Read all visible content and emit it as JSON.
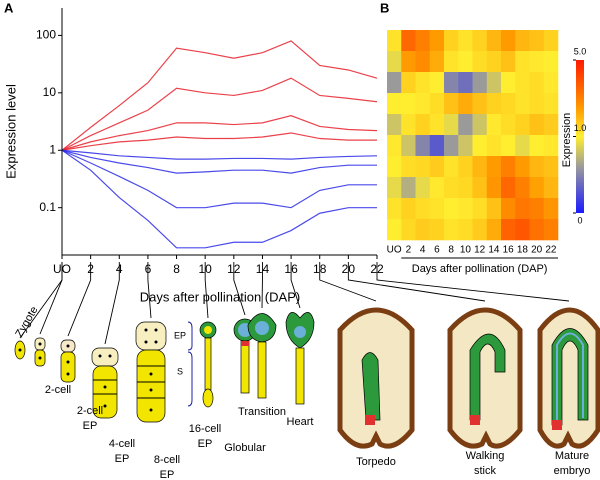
{
  "chart_data": [
    {
      "type": "line",
      "panel": "A",
      "ylabel": "Expression level",
      "xlabel": "Days after pollination (DAP)",
      "categories": [
        "UO",
        "2",
        "4",
        "6",
        "8",
        "10",
        "12",
        "14",
        "16",
        "18",
        "20",
        "22"
      ],
      "log": true,
      "ylim": [
        0.015,
        300
      ],
      "yticks": [
        0.1,
        1,
        10,
        100
      ],
      "series": [
        {
          "color": "#e8202a",
          "values": [
            1,
            2.5,
            6,
            15,
            60,
            50,
            40,
            50,
            80,
            30,
            25,
            18
          ]
        },
        {
          "color": "#e8202a",
          "values": [
            1,
            1.8,
            3,
            5,
            12,
            10,
            9,
            11,
            18,
            9,
            8,
            7
          ]
        },
        {
          "color": "#e8202a",
          "values": [
            1,
            1.4,
            1.8,
            2.2,
            3,
            3,
            2.8,
            3,
            4,
            2.6,
            2.3,
            2.2
          ]
        },
        {
          "color": "#e8202a",
          "values": [
            1,
            1.2,
            1.4,
            1.5,
            1.7,
            1.6,
            1.6,
            1.7,
            2,
            1.6,
            1.5,
            1.5
          ]
        },
        {
          "color": "#2a2ae8",
          "values": [
            1,
            0.9,
            0.8,
            0.75,
            0.7,
            0.7,
            0.72,
            0.72,
            0.7,
            0.75,
            0.78,
            0.8
          ]
        },
        {
          "color": "#2a2ae8",
          "values": [
            1,
            0.75,
            0.6,
            0.5,
            0.4,
            0.42,
            0.45,
            0.45,
            0.4,
            0.5,
            0.55,
            0.55
          ]
        },
        {
          "color": "#2a2ae8",
          "values": [
            1,
            0.6,
            0.35,
            0.2,
            0.1,
            0.1,
            0.12,
            0.12,
            0.1,
            0.2,
            0.25,
            0.25
          ]
        },
        {
          "color": "#2a2ae8",
          "values": [
            1,
            0.45,
            0.15,
            0.06,
            0.02,
            0.02,
            0.025,
            0.025,
            0.04,
            0.08,
            0.1,
            0.1
          ]
        }
      ]
    },
    {
      "type": "heatmap",
      "panel": "B",
      "xlabel": "Days after pollination (DAP)",
      "categories": [
        "UO",
        "2",
        "4",
        "6",
        "8",
        "10",
        "12",
        "14",
        "16",
        "18",
        "20",
        "22"
      ],
      "colorbar_label": "Expression",
      "colorbar_ticks": [
        0,
        {
          "value": 1,
          "label": "1.0"
        },
        {
          "value": 5,
          "label": "5.0"
        }
      ],
      "values": [
        [
          1.2,
          3.5,
          3.0,
          2.5,
          1.5,
          1.2,
          1.5,
          2,
          2.5,
          2,
          1.8,
          1.5
        ],
        [
          0.9,
          2.5,
          2.8,
          2.2,
          1.2,
          1.0,
          1.3,
          1.5,
          1.8,
          1.2,
          1.1,
          1.0
        ],
        [
          0.6,
          1.5,
          1.2,
          1.0,
          0.5,
          0.4,
          0.6,
          0.8,
          1.0,
          1.2,
          1.3,
          1.1
        ],
        [
          1.0,
          1.0,
          1.1,
          1.3,
          1.8,
          2.2,
          1.8,
          1.5,
          1.4,
          1.2,
          1.3,
          1.2
        ],
        [
          0.8,
          1.2,
          1.5,
          1.2,
          0.9,
          0.6,
          0.8,
          1.1,
          1.3,
          1.5,
          1.8,
          1.6
        ],
        [
          1.1,
          0.8,
          0.5,
          0.3,
          0.6,
          0.8,
          1.0,
          1.2,
          1.0,
          0.9,
          1.0,
          1.1
        ],
        [
          1.0,
          1.3,
          1.4,
          1.6,
          1.2,
          1.5,
          2.0,
          2.5,
          3.0,
          2.5,
          2.0,
          1.8
        ],
        [
          0.9,
          0.7,
          0.9,
          1.1,
          1.3,
          1.4,
          1.8,
          2.6,
          3.5,
          3.0,
          2.4,
          2.0
        ],
        [
          1.2,
          1.5,
          1.3,
          1.2,
          1.0,
          1.1,
          1.3,
          1.8,
          2.8,
          3.2,
          3.0,
          2.6
        ],
        [
          1.0,
          1.4,
          1.6,
          1.5,
          1.2,
          1.3,
          1.6,
          2.2,
          3.6,
          3.8,
          3.3,
          3.0
        ]
      ]
    }
  ],
  "stages": [
    {
      "lines": [
        "Zygote"
      ]
    },
    {
      "lines": [
        "2-cell"
      ]
    },
    {
      "lines": [
        "2-cell",
        "EP"
      ]
    },
    {
      "lines": [
        "4-cell",
        "EP"
      ]
    },
    {
      "lines": [
        "8-cell",
        "EP"
      ]
    },
    {
      "lines": [
        "16-cell",
        "EP"
      ]
    },
    {
      "lines": [
        "Globular"
      ]
    },
    {
      "lines": [
        "Transition"
      ]
    },
    {
      "lines": [
        "Heart"
      ]
    },
    {
      "lines": [
        "Torpedo"
      ]
    },
    {
      "lines": [
        "Walking",
        "stick"
      ]
    },
    {
      "lines": [
        "Mature",
        "embryo"
      ]
    }
  ],
  "bracket": [
    "EP",
    "S"
  ]
}
